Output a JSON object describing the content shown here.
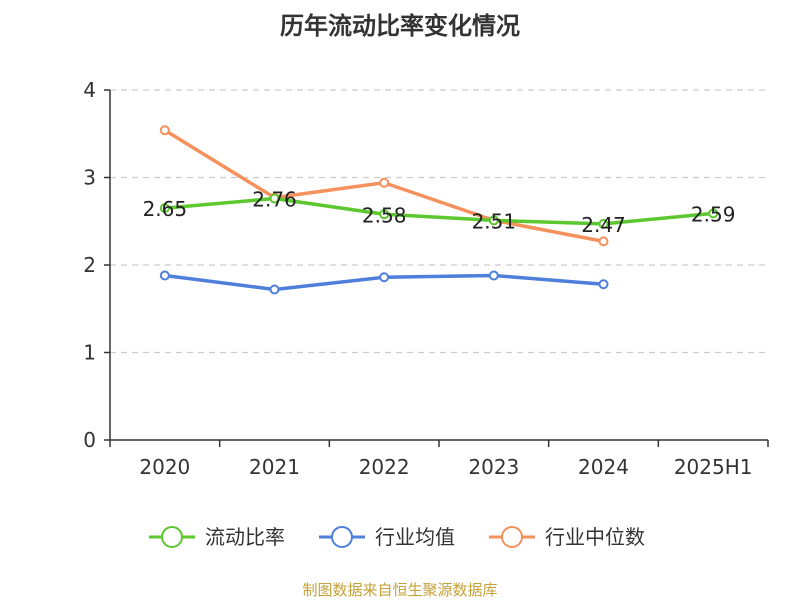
{
  "chart_data": {
    "type": "line",
    "title": "历年流动比率变化情况",
    "categories": [
      "2020",
      "2021",
      "2022",
      "2023",
      "2024",
      "2025H1"
    ],
    "ylim": [
      0,
      4
    ],
    "yticks": [
      "0",
      "1",
      "2",
      "3",
      "4"
    ],
    "grid": true,
    "legend_position": "bottom",
    "series": [
      {
        "name": "流动比率",
        "color": "#5cc72e",
        "values": [
          2.65,
          2.76,
          2.58,
          2.51,
          2.47,
          2.59
        ],
        "labels": [
          "2.65",
          "2.76",
          "2.58",
          "2.51",
          "2.47",
          "2.59"
        ],
        "show_labels": true
      },
      {
        "name": "行业均值",
        "color": "#4e7fdb",
        "values": [
          1.88,
          1.72,
          1.86,
          1.88,
          1.78,
          null
        ],
        "show_labels": false
      },
      {
        "name": "行业中位数",
        "color": "#f5915c",
        "values": [
          3.54,
          2.77,
          2.94,
          2.51,
          2.27,
          null
        ],
        "show_labels": false
      }
    ],
    "source": "制图数据来自恒生聚源数据库"
  }
}
